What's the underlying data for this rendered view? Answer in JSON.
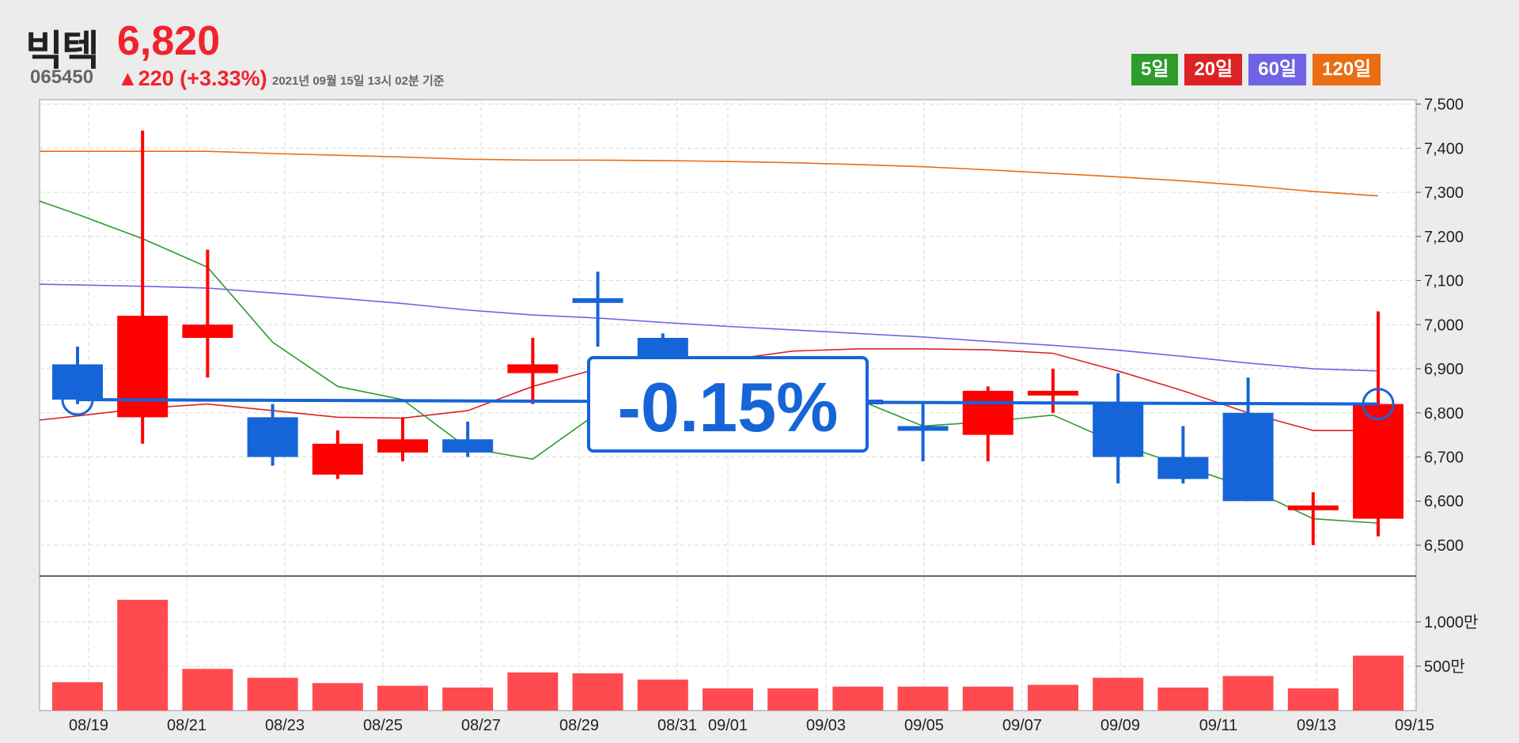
{
  "stock": {
    "name": "빅텍",
    "code": "065450",
    "price": "6,820",
    "change": "▲220 (+3.33%)",
    "timestamp": "2021년 09월 15일 13시 02분 기준"
  },
  "legend": [
    {
      "label": "5일",
      "color": "#2e9b2b"
    },
    {
      "label": "20일",
      "color": "#dd2226"
    },
    {
      "label": "60일",
      "color": "#6f63e3"
    },
    {
      "label": "120일",
      "color": "#ea6d14"
    }
  ],
  "colors": {
    "up": "#ff0000",
    "down": "#1565d8",
    "volume": "#ff4b4f",
    "highlight": "#1565d8"
  },
  "annotation": {
    "label": "-0.15%",
    "reference_price": 6830,
    "current_price": 6820
  },
  "chart_data": {
    "type": "candlestick",
    "ylim": [
      6430,
      7510
    ],
    "yticks": [
      6500,
      6600,
      6700,
      6800,
      6900,
      7000,
      7100,
      7200,
      7300,
      7400,
      7500
    ],
    "ytick_labels": [
      "6,500",
      "6,600",
      "6,700",
      "6,800",
      "6,900",
      "7,000",
      "7,100",
      "7,200",
      "7,300",
      "7,400",
      "7,500"
    ],
    "volume_ylim": [
      0,
      12500000
    ],
    "volume_ticks": [
      5000000,
      10000000
    ],
    "volume_tick_labels": [
      "500만",
      "1,000만"
    ],
    "xtick_labels": [
      "08/19",
      "08/21",
      "08/23",
      "08/25",
      "08/27",
      "08/29",
      "08/31",
      "09/01",
      "09/03",
      "09/05",
      "09/07",
      "09/09",
      "09/11",
      "09/13",
      "09/15"
    ],
    "candles": [
      {
        "date": "08/19",
        "open": 6910,
        "high": 6950,
        "low": 6820,
        "close": 6830,
        "volume": 3200000
      },
      {
        "date": "08/20",
        "open": 6790,
        "high": 7440,
        "low": 6730,
        "close": 7020,
        "volume": 12500000
      },
      {
        "date": "08/21",
        "open": 6970,
        "high": 7170,
        "low": 6880,
        "close": 7000,
        "volume": 4700000
      },
      {
        "date": "08/23",
        "open": 6790,
        "high": 6820,
        "low": 6680,
        "close": 6700,
        "volume": 3700000
      },
      {
        "date": "08/24",
        "open": 6660,
        "high": 6760,
        "low": 6650,
        "close": 6730,
        "volume": 3100000
      },
      {
        "date": "08/25",
        "open": 6710,
        "high": 6790,
        "low": 6690,
        "close": 6740,
        "volume": 2800000
      },
      {
        "date": "08/26",
        "open": 6740,
        "high": 6780,
        "low": 6700,
        "close": 6710,
        "volume": 2600000
      },
      {
        "date": "08/27",
        "open": 6890,
        "high": 6970,
        "low": 6820,
        "close": 6910,
        "volume": 4300000
      },
      {
        "date": "08/29",
        "open": 7060,
        "high": 7120,
        "low": 6950,
        "close": 7050,
        "volume": 4200000
      },
      {
        "date": "08/31",
        "open": 6970,
        "high": 6980,
        "low": 6820,
        "close": 6840,
        "volume": 3500000
      },
      {
        "date": "09/01",
        "open": 6830,
        "high": 6860,
        "low": 6800,
        "close": 6820,
        "volume": 2500000
      },
      {
        "date": "09/02",
        "open": 6830,
        "high": 6850,
        "low": 6800,
        "close": 6820,
        "volume": 2500000
      },
      {
        "date": "09/03",
        "open": 6830,
        "high": 6850,
        "low": 6800,
        "close": 6820,
        "volume": 2700000
      },
      {
        "date": "09/05",
        "open": 6770,
        "high": 6820,
        "low": 6690,
        "close": 6765,
        "volume": 2700000
      },
      {
        "date": "09/06",
        "open": 6750,
        "high": 6860,
        "low": 6690,
        "close": 6850,
        "volume": 2700000
      },
      {
        "date": "09/07",
        "open": 6840,
        "high": 6900,
        "low": 6800,
        "close": 6850,
        "volume": 2900000
      },
      {
        "date": "09/09",
        "open": 6820,
        "high": 6890,
        "low": 6640,
        "close": 6700,
        "volume": 3700000
      },
      {
        "date": "09/10",
        "open": 6700,
        "high": 6770,
        "low": 6640,
        "close": 6650,
        "volume": 2600000
      },
      {
        "date": "09/11",
        "open": 6800,
        "high": 6880,
        "low": 6600,
        "close": 6600,
        "volume": 3900000
      },
      {
        "date": "09/13",
        "open": 6580,
        "high": 6620,
        "low": 6500,
        "close": 6590,
        "volume": 2500000
      },
      {
        "date": "09/15",
        "open": 6560,
        "high": 7030,
        "low": 6520,
        "close": 6820,
        "volume": 6200000
      }
    ],
    "series": [
      {
        "name": "5일",
        "color": "#2e9b2b",
        "start": 0,
        "values": [
          7250,
          7195,
          7130,
          6960,
          6860,
          6830,
          6720,
          6695,
          6800,
          6850,
          6860,
          6850,
          6830,
          6770,
          6780,
          6795,
          6730,
          6680,
          6630,
          6560,
          6550
        ]
      },
      {
        "name": "20일",
        "color": "#dd2226",
        "start": 0,
        "values": [
          6793,
          6810,
          6820,
          6805,
          6790,
          6788,
          6805,
          6860,
          6900,
          6915,
          6920,
          6940,
          6945,
          6945,
          6943,
          6935,
          6895,
          6850,
          6800,
          6760,
          6760
        ]
      },
      {
        "name": "60일",
        "color": "#6f63e3",
        "start": 0,
        "values": [
          7090,
          7087,
          7083,
          7072,
          7060,
          7048,
          7033,
          7022,
          7015,
          7005,
          6996,
          6988,
          6980,
          6972,
          6962,
          6953,
          6942,
          6928,
          6913,
          6900,
          6895
        ]
      },
      {
        "name": "120일",
        "color": "#ea6d14",
        "start": 0,
        "values": [
          7393,
          7393,
          7393,
          7388,
          7384,
          7380,
          7375,
          7373,
          7373,
          7372,
          7370,
          7367,
          7363,
          7358,
          7351,
          7343,
          7335,
          7326,
          7315,
          7302,
          7292
        ]
      }
    ]
  }
}
